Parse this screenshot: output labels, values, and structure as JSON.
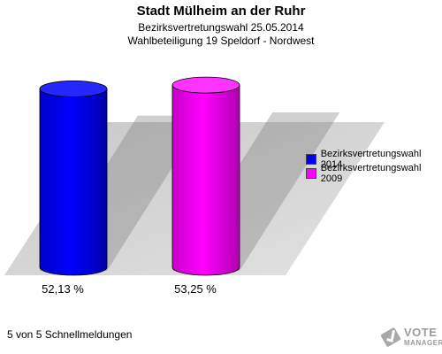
{
  "header": {
    "title": "Stadt Mülheim an der Ruhr",
    "subtitle1": "Bezirksvertretungswahl 25.05.2014",
    "subtitle2": "Wahlbeteiligung 19 Speldorf - Nordwest"
  },
  "chart_data": {
    "type": "bar",
    "categories": [
      "Bezirksvertretungswahl 2014",
      "Bezirksvertretungswahl 2009"
    ],
    "values": [
      52.13,
      53.25
    ],
    "value_labels": [
      "52,13 %",
      "53,25 %"
    ],
    "colors": [
      "#0000ff",
      "#ff00ff"
    ],
    "ylim": [
      0,
      60
    ],
    "grid": false,
    "legend_position": "right",
    "title": "Stadt Mülheim an der Ruhr"
  },
  "legend": {
    "items": [
      {
        "label": "Bezirksvertretungswahl 2014",
        "color": "#0000ff"
      },
      {
        "label": "Bezirksvertretungswahl 2009",
        "color": "#ff00ff"
      }
    ]
  },
  "footer": {
    "text": "5 von 5 Schnellmeldungen"
  },
  "logo": {
    "line1": "VOTE",
    "line2": "MANAGER"
  }
}
